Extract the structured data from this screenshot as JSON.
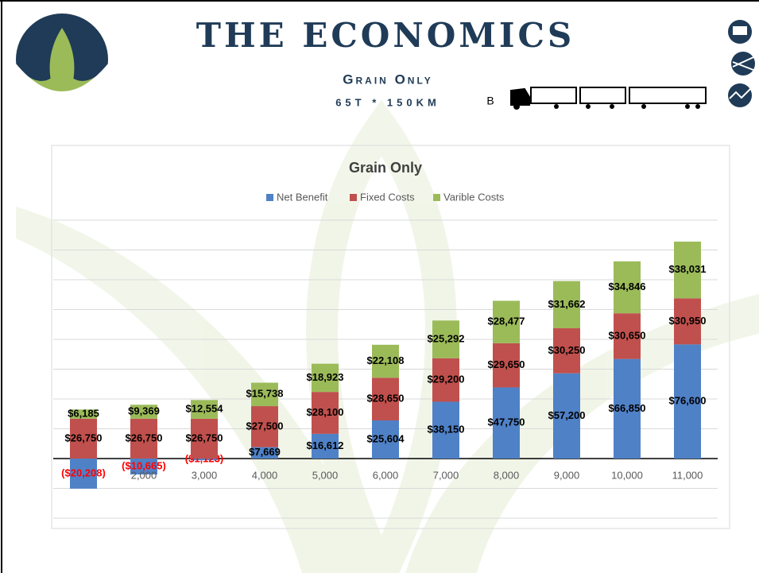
{
  "header": {
    "title": "The Economics",
    "subtitle": "Grain Only",
    "detail": "65T * 150KM",
    "truck_label": "B"
  },
  "chart_data": {
    "type": "stacked_bar",
    "title": "Grain Only",
    "categories": [
      null,
      "2,000",
      "3,000",
      "4,000",
      "5,000",
      "6,000",
      "7,000",
      "8,000",
      "9,000",
      "10,000",
      "11,000"
    ],
    "series": [
      {
        "name": "Net Benefit",
        "color": "#4f81c7",
        "values": [
          -20208,
          -10665,
          -1123,
          7669,
          16612,
          25604,
          38150,
          47750,
          57200,
          66850,
          76600
        ],
        "value_labels": [
          "($20,208)",
          "($10,665)",
          "($1,123)",
          "$7,669",
          "$16,612",
          "$25,604",
          "$38,150",
          "$47,750",
          "$57,200",
          "$66,850",
          "$76,600"
        ]
      },
      {
        "name": "Fixed Costs",
        "color": "#c0504d",
        "values": [
          26750,
          26750,
          26750,
          27500,
          28100,
          28650,
          29200,
          29650,
          30250,
          30650,
          30950
        ],
        "value_labels": [
          "$26,750",
          "$26,750",
          "$26,750",
          "$27,500",
          "$28,100",
          "$28,650",
          "$29,200",
          "$29,650",
          "$30,250",
          "$30,650",
          "$30,950"
        ]
      },
      {
        "name": "Varible Costs",
        "color": "#9bbb59",
        "values": [
          6185,
          9369,
          12554,
          15738,
          18923,
          22108,
          25292,
          28477,
          31662,
          34846,
          38031
        ],
        "value_labels": [
          "$6,185",
          "$9,369",
          "$12,554",
          "$15,738",
          "$18,923",
          "$22,108",
          "$25,292",
          "$28,477",
          "$31,662",
          "$34,846",
          "$38,031"
        ]
      }
    ],
    "ylim": [
      -40000,
      160000
    ],
    "yticks": [
      -40000,
      -20000,
      0,
      20000,
      40000,
      60000,
      80000,
      100000,
      120000,
      140000,
      160000
    ],
    "ytick_labels": false,
    "grid": true,
    "negative_label_color": "#ff0000",
    "legend": "top"
  }
}
